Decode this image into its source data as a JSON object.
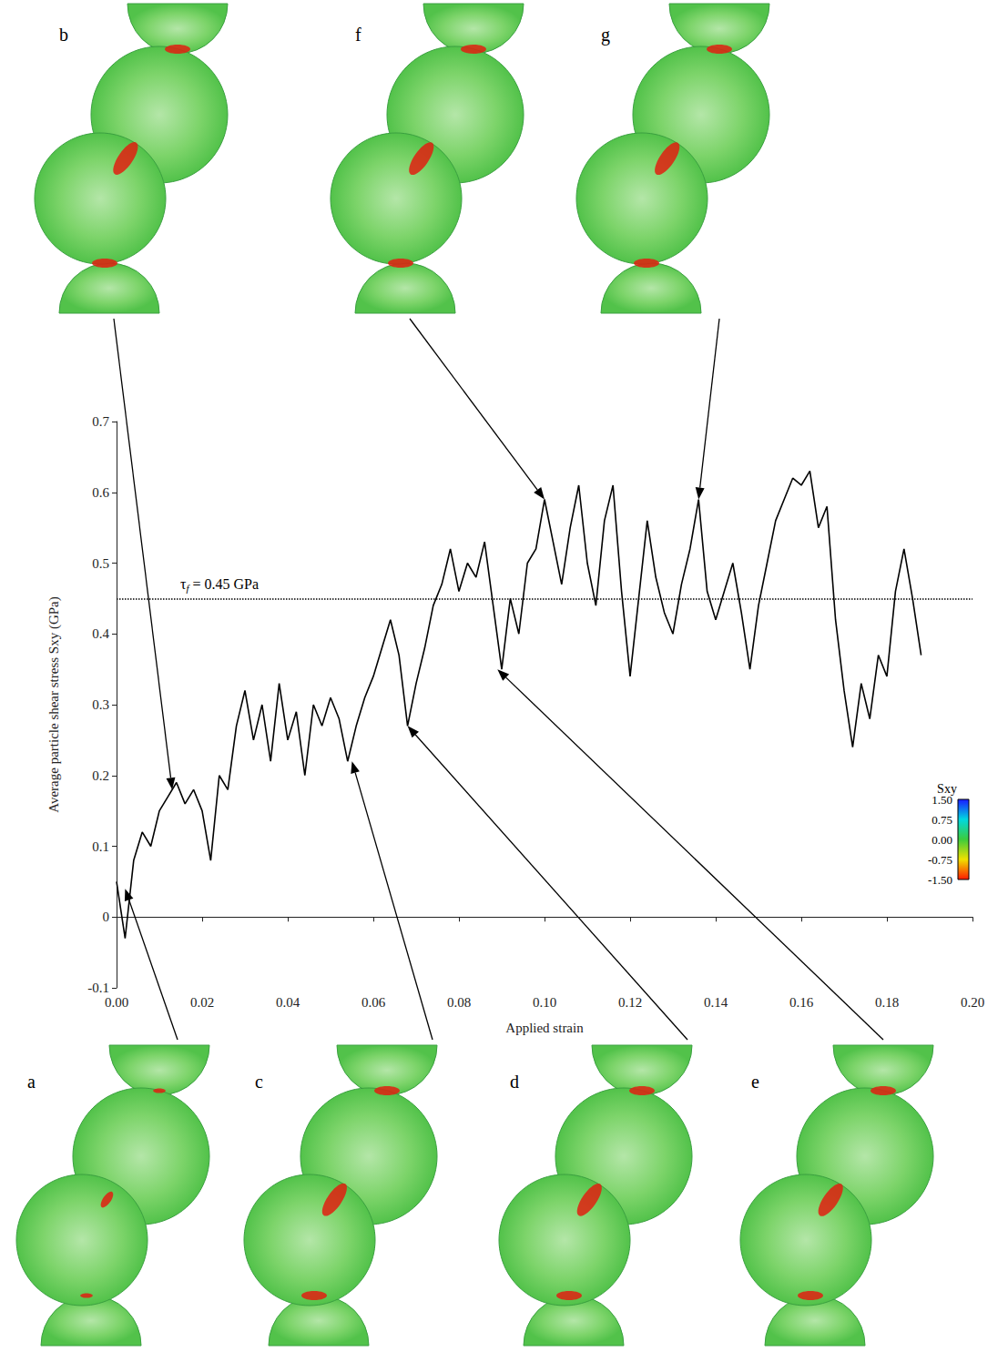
{
  "chart_data": {
    "type": "line",
    "x_label": "Applied strain",
    "y_label": "Average particle shear stress Sxy (GPa)",
    "x": [
      0,
      0.002,
      0.004,
      0.006,
      0.008,
      0.01,
      0.012,
      0.014,
      0.016,
      0.018,
      0.02,
      0.022,
      0.024,
      0.026,
      0.028,
      0.03,
      0.032,
      0.034,
      0.036,
      0.038,
      0.04,
      0.042,
      0.044,
      0.046,
      0.048,
      0.05,
      0.052,
      0.054,
      0.056,
      0.058,
      0.06,
      0.062,
      0.064,
      0.066,
      0.068,
      0.07,
      0.072,
      0.074,
      0.076,
      0.078,
      0.08,
      0.082,
      0.084,
      0.086,
      0.088,
      0.09,
      0.092,
      0.094,
      0.096,
      0.098,
      0.1,
      0.102,
      0.104,
      0.106,
      0.108,
      0.11,
      0.112,
      0.114,
      0.116,
      0.118,
      0.12,
      0.122,
      0.124,
      0.126,
      0.128,
      0.13,
      0.132,
      0.134,
      0.136,
      0.138,
      0.14,
      0.142,
      0.144,
      0.146,
      0.148,
      0.15,
      0.152,
      0.154,
      0.156,
      0.158,
      0.16,
      0.162,
      0.164,
      0.166,
      0.168,
      0.17,
      0.172,
      0.174,
      0.176,
      0.178,
      0.18,
      0.182,
      0.184,
      0.186,
      0.188
    ],
    "series": [
      {
        "color": "#000000",
        "line_style": "solid",
        "values": [
          0.05,
          -0.03,
          0.08,
          0.12,
          0.1,
          0.15,
          0.17,
          0.19,
          0.16,
          0.18,
          0.15,
          0.08,
          0.2,
          0.18,
          0.27,
          0.32,
          0.25,
          0.3,
          0.22,
          0.33,
          0.25,
          0.29,
          0.2,
          0.3,
          0.27,
          0.31,
          0.28,
          0.22,
          0.27,
          0.31,
          0.34,
          0.38,
          0.42,
          0.37,
          0.27,
          0.33,
          0.38,
          0.44,
          0.47,
          0.52,
          0.46,
          0.5,
          0.48,
          0.53,
          0.44,
          0.35,
          0.45,
          0.4,
          0.5,
          0.52,
          0.59,
          0.53,
          0.47,
          0.55,
          0.61,
          0.5,
          0.44,
          0.56,
          0.61,
          0.46,
          0.34,
          0.45,
          0.56,
          0.48,
          0.43,
          0.4,
          0.47,
          0.52,
          0.59,
          0.46,
          0.42,
          0.46,
          0.5,
          0.43,
          0.35,
          0.44,
          0.5,
          0.56,
          0.59,
          0.62,
          0.61,
          0.63,
          0.55,
          0.58,
          0.42,
          0.32,
          0.24,
          0.33,
          0.28,
          0.37,
          0.34,
          0.46,
          0.52,
          0.45,
          0.37
        ]
      }
    ],
    "xlim": [
      0,
      0.2
    ],
    "xticks": [
      {
        "value": 0,
        "label": "0.00"
      },
      {
        "value": 0.02,
        "label": "0.02"
      },
      {
        "value": 0.04,
        "label": "0.04"
      },
      {
        "value": 0.06,
        "label": "0.06"
      },
      {
        "value": 0.08,
        "label": "0.08"
      },
      {
        "value": 0.1,
        "label": "0.10"
      },
      {
        "value": 0.12,
        "label": "0.12"
      },
      {
        "value": 0.14,
        "label": "0.14"
      },
      {
        "value": 0.16,
        "label": "0.16"
      },
      {
        "value": 0.18,
        "label": "0.18"
      },
      {
        "value": 0.2,
        "label": "0.20"
      }
    ],
    "ylim": [
      -0.1,
      0.7
    ],
    "yticks": [
      -0.1,
      0,
      0.1,
      0.2,
      0.3,
      0.4,
      0.5,
      0.6,
      0.7
    ],
    "grid": false,
    "reference_line": {
      "y": 0.45,
      "line_style": "dotted",
      "label_parts": [
        {
          "text": "τ"
        },
        {
          "text": "f",
          "sub": true
        },
        {
          "text": " = 0.45 GPa"
        }
      ]
    },
    "annotations": [
      {
        "text": "a",
        "x": 0.002,
        "y": 0.04
      },
      {
        "text": "b",
        "x": 0.013,
        "y": 0.18
      },
      {
        "text": "c",
        "x": 0.055,
        "y": 0.22
      },
      {
        "text": "d",
        "x": 0.068,
        "y": 0.27
      },
      {
        "text": "e",
        "x": 0.089,
        "y": 0.35
      },
      {
        "text": "f",
        "x": 0.1,
        "y": 0.59
      },
      {
        "text": "g",
        "x": 0.136,
        "y": 0.59
      }
    ],
    "colorbar": {
      "title": "Sxy",
      "range": [
        -1.5,
        1.5
      ],
      "colors": [
        "#1a1aff",
        "#00d8e0",
        "#3ccc3c",
        "#f0e000",
        "#ff1a00"
      ],
      "ticks": [
        {
          "value": 1.5,
          "label": "1.50"
        },
        {
          "value": 0.75,
          "label": "0.75"
        },
        {
          "value": 0,
          "label": "0.00"
        },
        {
          "value": -0.75,
          "label": "-0.75"
        },
        {
          "value": -1.5,
          "label": "-1.50"
        }
      ]
    }
  }
}
